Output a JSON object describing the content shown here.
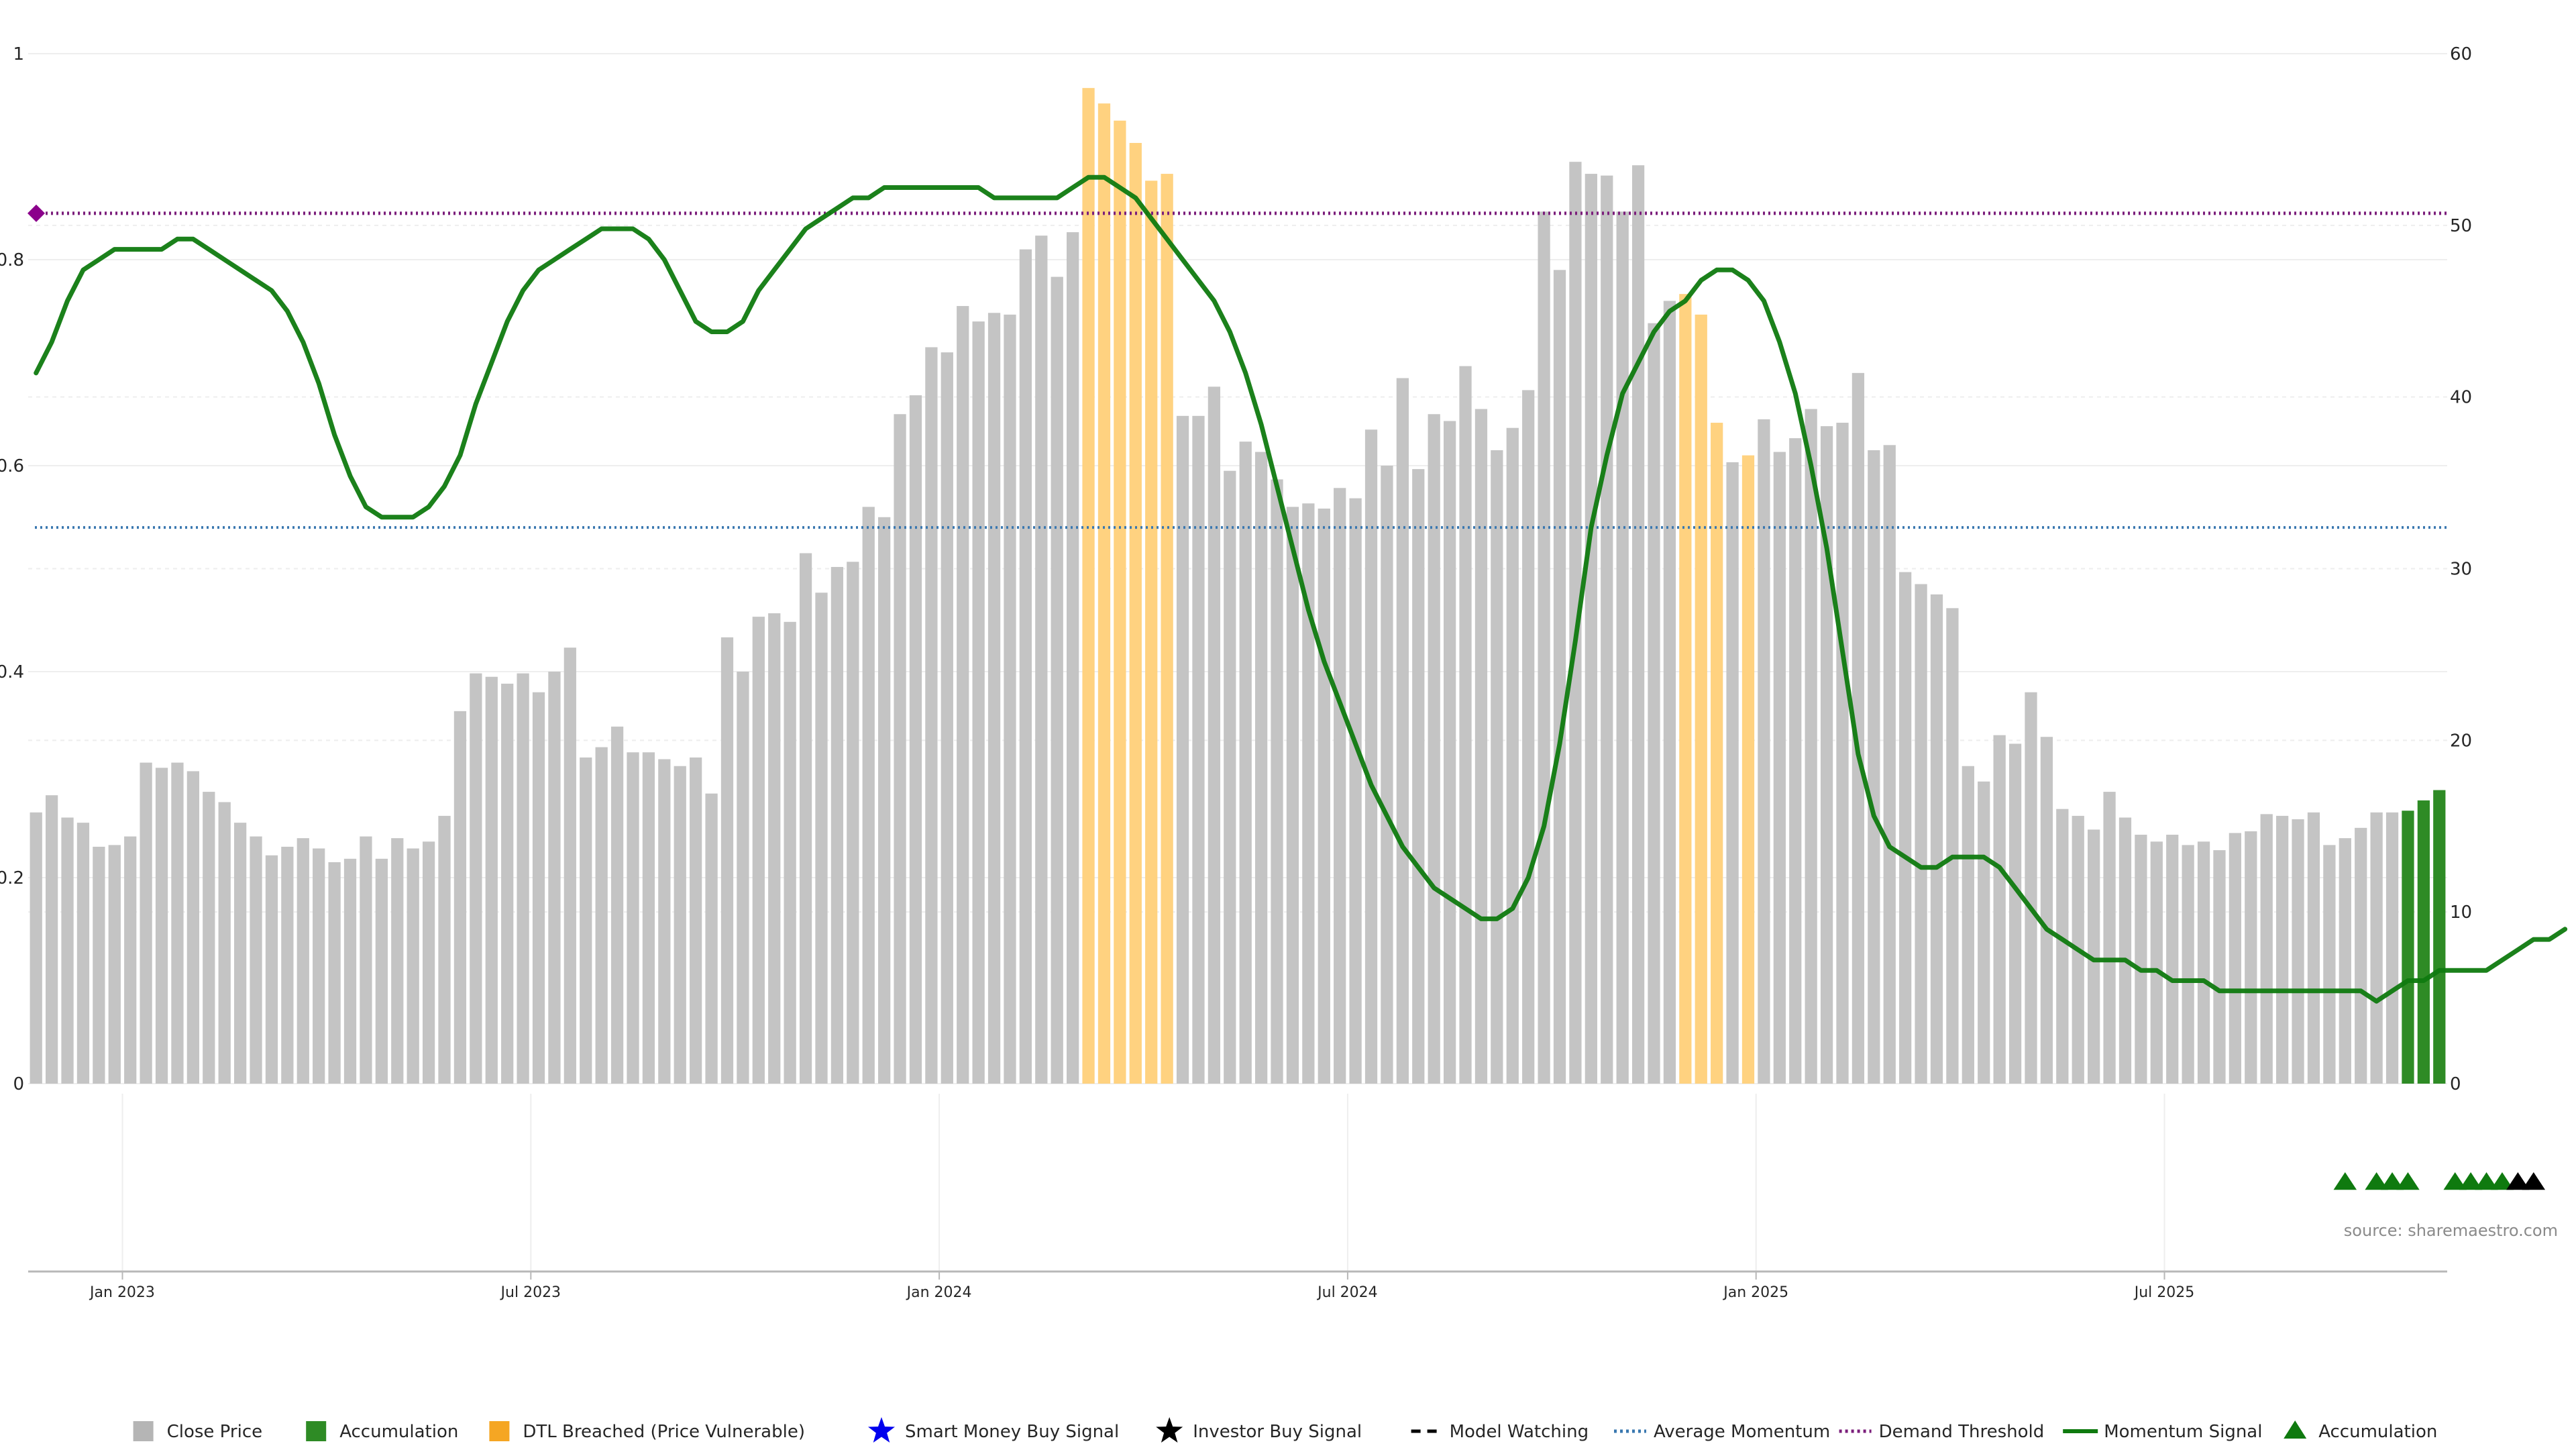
{
  "source_note": "source: sharemaestro.com",
  "colors": {
    "close_price": "#c4c4c4",
    "accumulation": "#2e8b25",
    "dtl_breached": "#ffd280",
    "momentum": "#0f7a0f",
    "average_momentum": "#3a78b0",
    "demand_threshold": "#7b1e7b",
    "demand_marker": "#8b008b",
    "smart_money": "#0000ee",
    "investor": "#000000",
    "grid": "#eeeeee"
  },
  "legend": [
    {
      "label": "Close Price",
      "icon": "square-icon",
      "color": "#b5b5b5"
    },
    {
      "label": "Accumulation",
      "icon": "square-icon",
      "color": "#2e8b25"
    },
    {
      "label": "DTL Breached (Price Vulnerable)",
      "icon": "square-icon",
      "color": "#f5a623"
    },
    {
      "label": "Smart Money Buy Signal",
      "icon": "star-icon",
      "color": "#0000ee"
    },
    {
      "label": "Investor Buy Signal",
      "icon": "star-icon",
      "color": "#000000"
    },
    {
      "label": "Model Watching",
      "icon": "dashed-line-icon",
      "color": "#000000"
    },
    {
      "label": "Average Momentum",
      "icon": "dotted-line-icon",
      "color": "#3a78b0"
    },
    {
      "label": "Demand Threshold",
      "icon": "dotted-line-icon",
      "color": "#7b1e7b"
    },
    {
      "label": "Momentum Signal",
      "icon": "solid-line-icon",
      "color": "#0f7a0f"
    },
    {
      "label": "Accumulation",
      "icon": "triangle-icon",
      "color": "#0f7a0f"
    }
  ],
  "chart_data": {
    "type": "bar",
    "title": "",
    "x_ticks": [
      "Jan 2023",
      "Jul 2023",
      "Jan 2024",
      "Jul 2024",
      "Jan 2025",
      "Jul 2025"
    ],
    "y_left_ticks": [
      "0",
      "0.2",
      "0.4",
      "0.6",
      "0.8",
      "1"
    ],
    "y_left_lim": [
      0,
      1
    ],
    "y_right_ticks": [
      "0",
      "10",
      "20",
      "30",
      "40",
      "50",
      "60"
    ],
    "y_right_lim": [
      0,
      60
    ],
    "grid": true,
    "legend_position": "bottom",
    "close_price": [
      15.8,
      16.8,
      15.5,
      15.2,
      13.8,
      13.9,
      14.4,
      18.7,
      18.4,
      18.7,
      18.2,
      17.0,
      16.4,
      15.2,
      14.4,
      13.3,
      13.8,
      14.3,
      13.7,
      12.9,
      13.1,
      14.4,
      13.1,
      14.3,
      13.7,
      14.1,
      15.6,
      21.7,
      23.9,
      23.7,
      23.3,
      23.9,
      22.8,
      24.0,
      25.4,
      19.0,
      19.6,
      20.8,
      19.3,
      19.3,
      18.9,
      18.5,
      19.0,
      16.9,
      26.0,
      24.0,
      27.2,
      27.4,
      26.9,
      30.9,
      28.6,
      30.1,
      30.4,
      33.6,
      33.0,
      39.0,
      40.1,
      42.9,
      42.6,
      45.3,
      44.4,
      44.9,
      44.8,
      48.6,
      49.4,
      47.0,
      49.6,
      58.0,
      57.1,
      56.1,
      54.8,
      52.6,
      53.0,
      38.9,
      38.9,
      40.6,
      35.7,
      37.4,
      36.8,
      35.2,
      33.6,
      33.8,
      33.5,
      34.7,
      34.1,
      38.1,
      36.0,
      41.1,
      35.8,
      39.0,
      38.6,
      41.8,
      39.3,
      36.9,
      38.2,
      40.4,
      50.8,
      47.4,
      53.7,
      53.0,
      52.9,
      50.8,
      53.5,
      44.3,
      45.6,
      46.0,
      44.8,
      38.5,
      36.2,
      36.6,
      38.7,
      36.8,
      37.6,
      39.3,
      38.3,
      38.5,
      41.4,
      36.9,
      37.2,
      29.8,
      29.1,
      28.5,
      27.7,
      18.5,
      17.6,
      20.3,
      19.8,
      22.8,
      20.2,
      16.0,
      15.6,
      14.8,
      17.0,
      15.5,
      14.5,
      14.1,
      14.5,
      13.9,
      14.1,
      13.6,
      14.6,
      14.7,
      15.7,
      15.6,
      15.4,
      15.8,
      13.9,
      14.3,
      14.9,
      15.8,
      15.8,
      15.9,
      16.5,
      17.1
    ],
    "bar_category_codes": "CCCCCCCCCCCCCCCCCCCCCCCCCCCCCCCCCCCCCCCCCCCCCCCCCCCCCCCCCCCCCCCCCCCDDDDDDCCCCCCCCCCCCCCCCCCCCCCCCCCCCCCCCDDDCDCCCCCCCCCCCCCCCCCCCCCCCCCCCCCCCCCCCCCCCCCAAAAACCAAAAAA",
    "momentum_signal": [
      0.69,
      0.72,
      0.76,
      0.79,
      0.8,
      0.81,
      0.81,
      0.81,
      0.81,
      0.82,
      0.82,
      0.81,
      0.8,
      0.79,
      0.78,
      0.77,
      0.75,
      0.72,
      0.68,
      0.63,
      0.59,
      0.56,
      0.55,
      0.55,
      0.55,
      0.56,
      0.58,
      0.61,
      0.66,
      0.7,
      0.74,
      0.77,
      0.79,
      0.8,
      0.81,
      0.82,
      0.83,
      0.83,
      0.83,
      0.82,
      0.8,
      0.77,
      0.74,
      0.73,
      0.73,
      0.74,
      0.77,
      0.79,
      0.81,
      0.83,
      0.84,
      0.85,
      0.86,
      0.86,
      0.87,
      0.87,
      0.87,
      0.87,
      0.87,
      0.87,
      0.87,
      0.86,
      0.86,
      0.86,
      0.86,
      0.86,
      0.87,
      0.88,
      0.88,
      0.87,
      0.86,
      0.84,
      0.82,
      0.8,
      0.78,
      0.76,
      0.73,
      0.69,
      0.64,
      0.58,
      0.52,
      0.46,
      0.41,
      0.37,
      0.33,
      0.29,
      0.26,
      0.23,
      0.21,
      0.19,
      0.18,
      0.17,
      0.16,
      0.16,
      0.17,
      0.2,
      0.25,
      0.33,
      0.43,
      0.54,
      0.61,
      0.67,
      0.7,
      0.73,
      0.75,
      0.76,
      0.78,
      0.79,
      0.79,
      0.78,
      0.76,
      0.72,
      0.67,
      0.6,
      0.52,
      0.42,
      0.32,
      0.26,
      0.23,
      0.22,
      0.21,
      0.21,
      0.22,
      0.22,
      0.22,
      0.21,
      0.19,
      0.17,
      0.15,
      0.14,
      0.13,
      0.12,
      0.12,
      0.12,
      0.11,
      0.11,
      0.1,
      0.1,
      0.1,
      0.09,
      0.09,
      0.09,
      0.09,
      0.09,
      0.09,
      0.09,
      0.09,
      0.09,
      0.09,
      0.08,
      0.09,
      0.1,
      0.1,
      0.11,
      0.11,
      0.11,
      0.11,
      0.12,
      0.13,
      0.14,
      0.14,
      0.15
    ],
    "average_momentum": 0.54,
    "demand_threshold": 0.845,
    "accumulation_markers": [
      147,
      149,
      150,
      151,
      154,
      155,
      156,
      157
    ],
    "investor_markers": [
      158,
      159
    ]
  }
}
